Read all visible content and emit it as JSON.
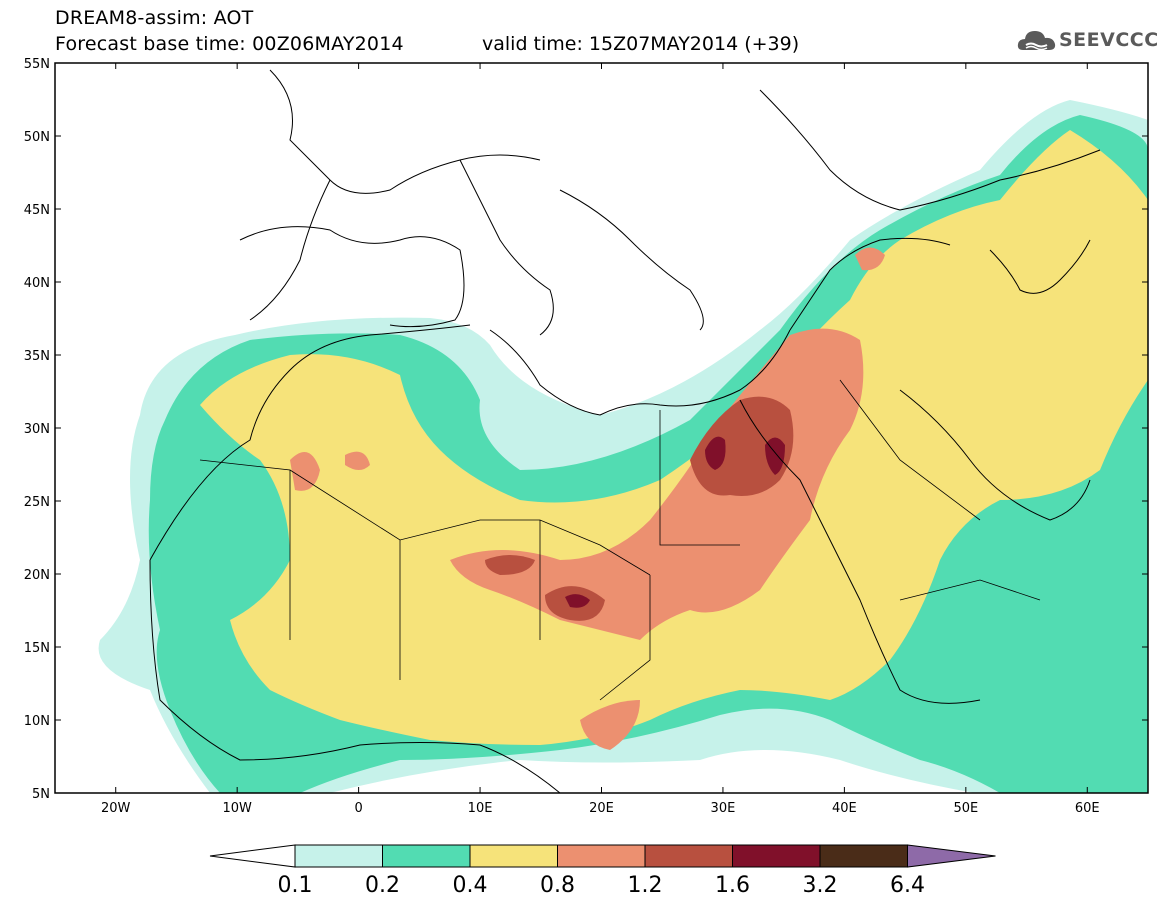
{
  "header": {
    "line1": "DREAM8-assim: AOT",
    "line2": "Forecast base time: 00Z06MAY2014",
    "valid": "valid time: 15Z07MAY2014 (+39)"
  },
  "logo": {
    "text": "SEEVCCC",
    "icon": "cloud-icon"
  },
  "map": {
    "lat_labels": [
      "55N",
      "50N",
      "45N",
      "40N",
      "35N",
      "30N",
      "25N",
      "20N",
      "15N",
      "10N",
      "5N"
    ],
    "lon_labels": [
      "20W",
      "10W",
      "0",
      "10E",
      "20E",
      "30E",
      "40E",
      "50E",
      "60E"
    ],
    "lat_values": [
      55,
      50,
      45,
      40,
      35,
      30,
      25,
      20,
      15,
      10,
      5
    ],
    "lon_values": [
      -20,
      -10,
      0,
      10,
      20,
      30,
      40,
      50,
      60
    ],
    "lon_range": [
      -25,
      65
    ],
    "lat_range": [
      5,
      55
    ]
  },
  "colorbar": {
    "labels": [
      "0.1",
      "0.2",
      "0.4",
      "0.8",
      "1.2",
      "1.6",
      "3.2",
      "6.4"
    ],
    "values": [
      0.1,
      0.2,
      0.4,
      0.8,
      1.2,
      1.6,
      3.2,
      6.4
    ],
    "colors": [
      "#c6f2ea",
      "#52dcb2",
      "#f6e37a",
      "#ec9070",
      "#b8503f",
      "#80102a",
      "#4a2c18",
      "#8e6aa8"
    ]
  }
}
